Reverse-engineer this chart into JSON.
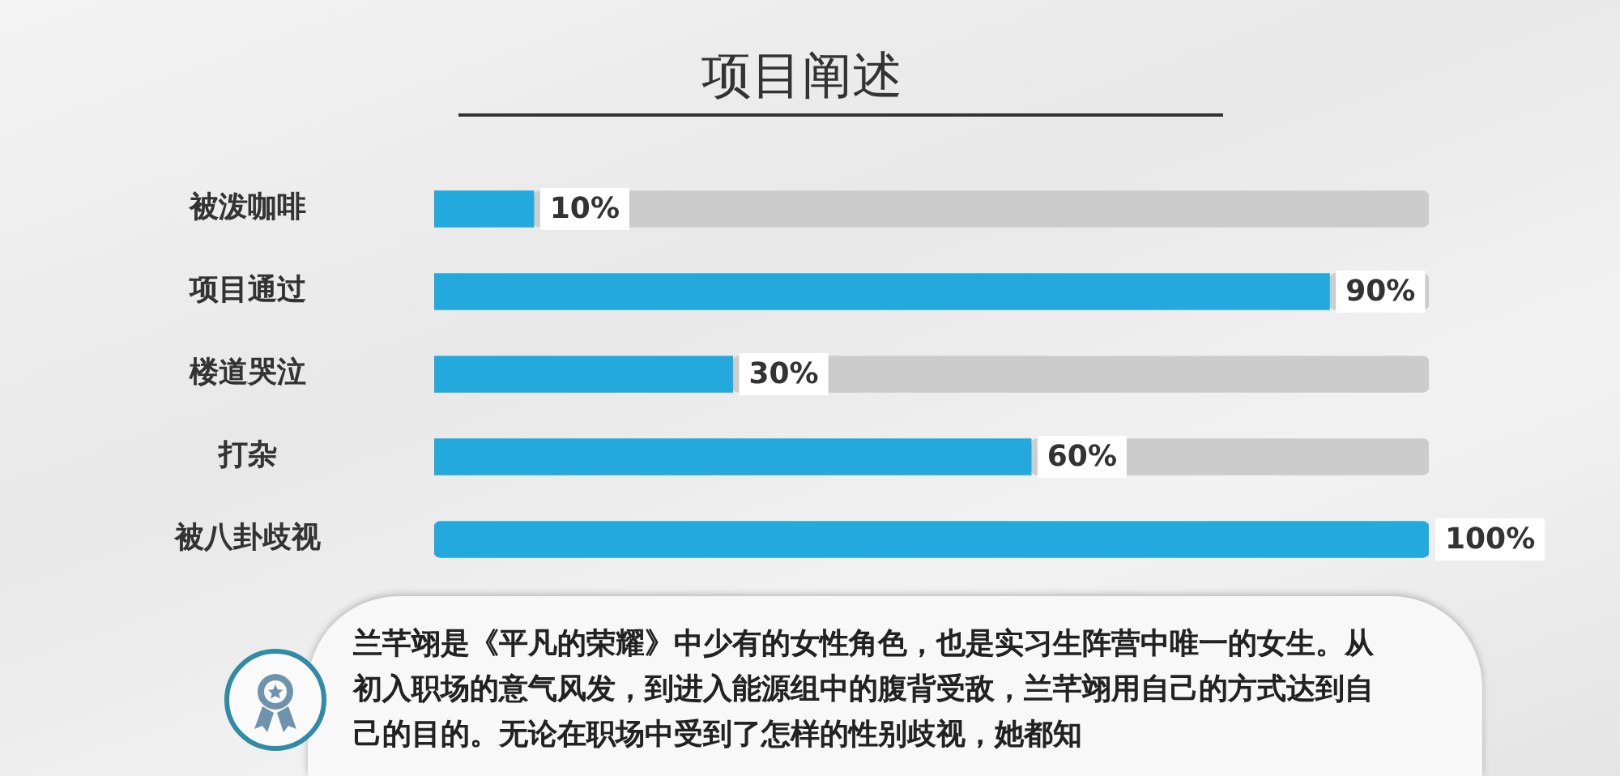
{
  "chart_data": {
    "type": "bar",
    "orientation": "horizontal",
    "stacked": true,
    "title": "项目阐述",
    "categories": [
      "被泼咖啡",
      "项目通过",
      "楼道哭泣",
      "打杂",
      "被八卦歧视"
    ],
    "series": [
      {
        "color": "#24a9dd",
        "values": [
          10,
          90,
          30,
          60,
          100
        ],
        "value_labels": [
          "10%",
          "90%",
          "30%",
          "60%",
          "100%"
        ]
      },
      {
        "color": "#cccccc",
        "values": [
          90,
          10,
          70,
          40,
          0
        ]
      }
    ],
    "xlim": [
      0,
      100
    ],
    "tick_labels": "y",
    "annotations": [
      "兰芊翊是《平凡的荣耀》中少有的女性角色，也是实习生阵营中唯一的女生。从初入职场的意气风发，到进入能源组中的腹背受敌，兰芊翊用自己的方式达到自己的目的。无论在职场中受到了怎样的性别歧视，她都知"
    ]
  }
}
